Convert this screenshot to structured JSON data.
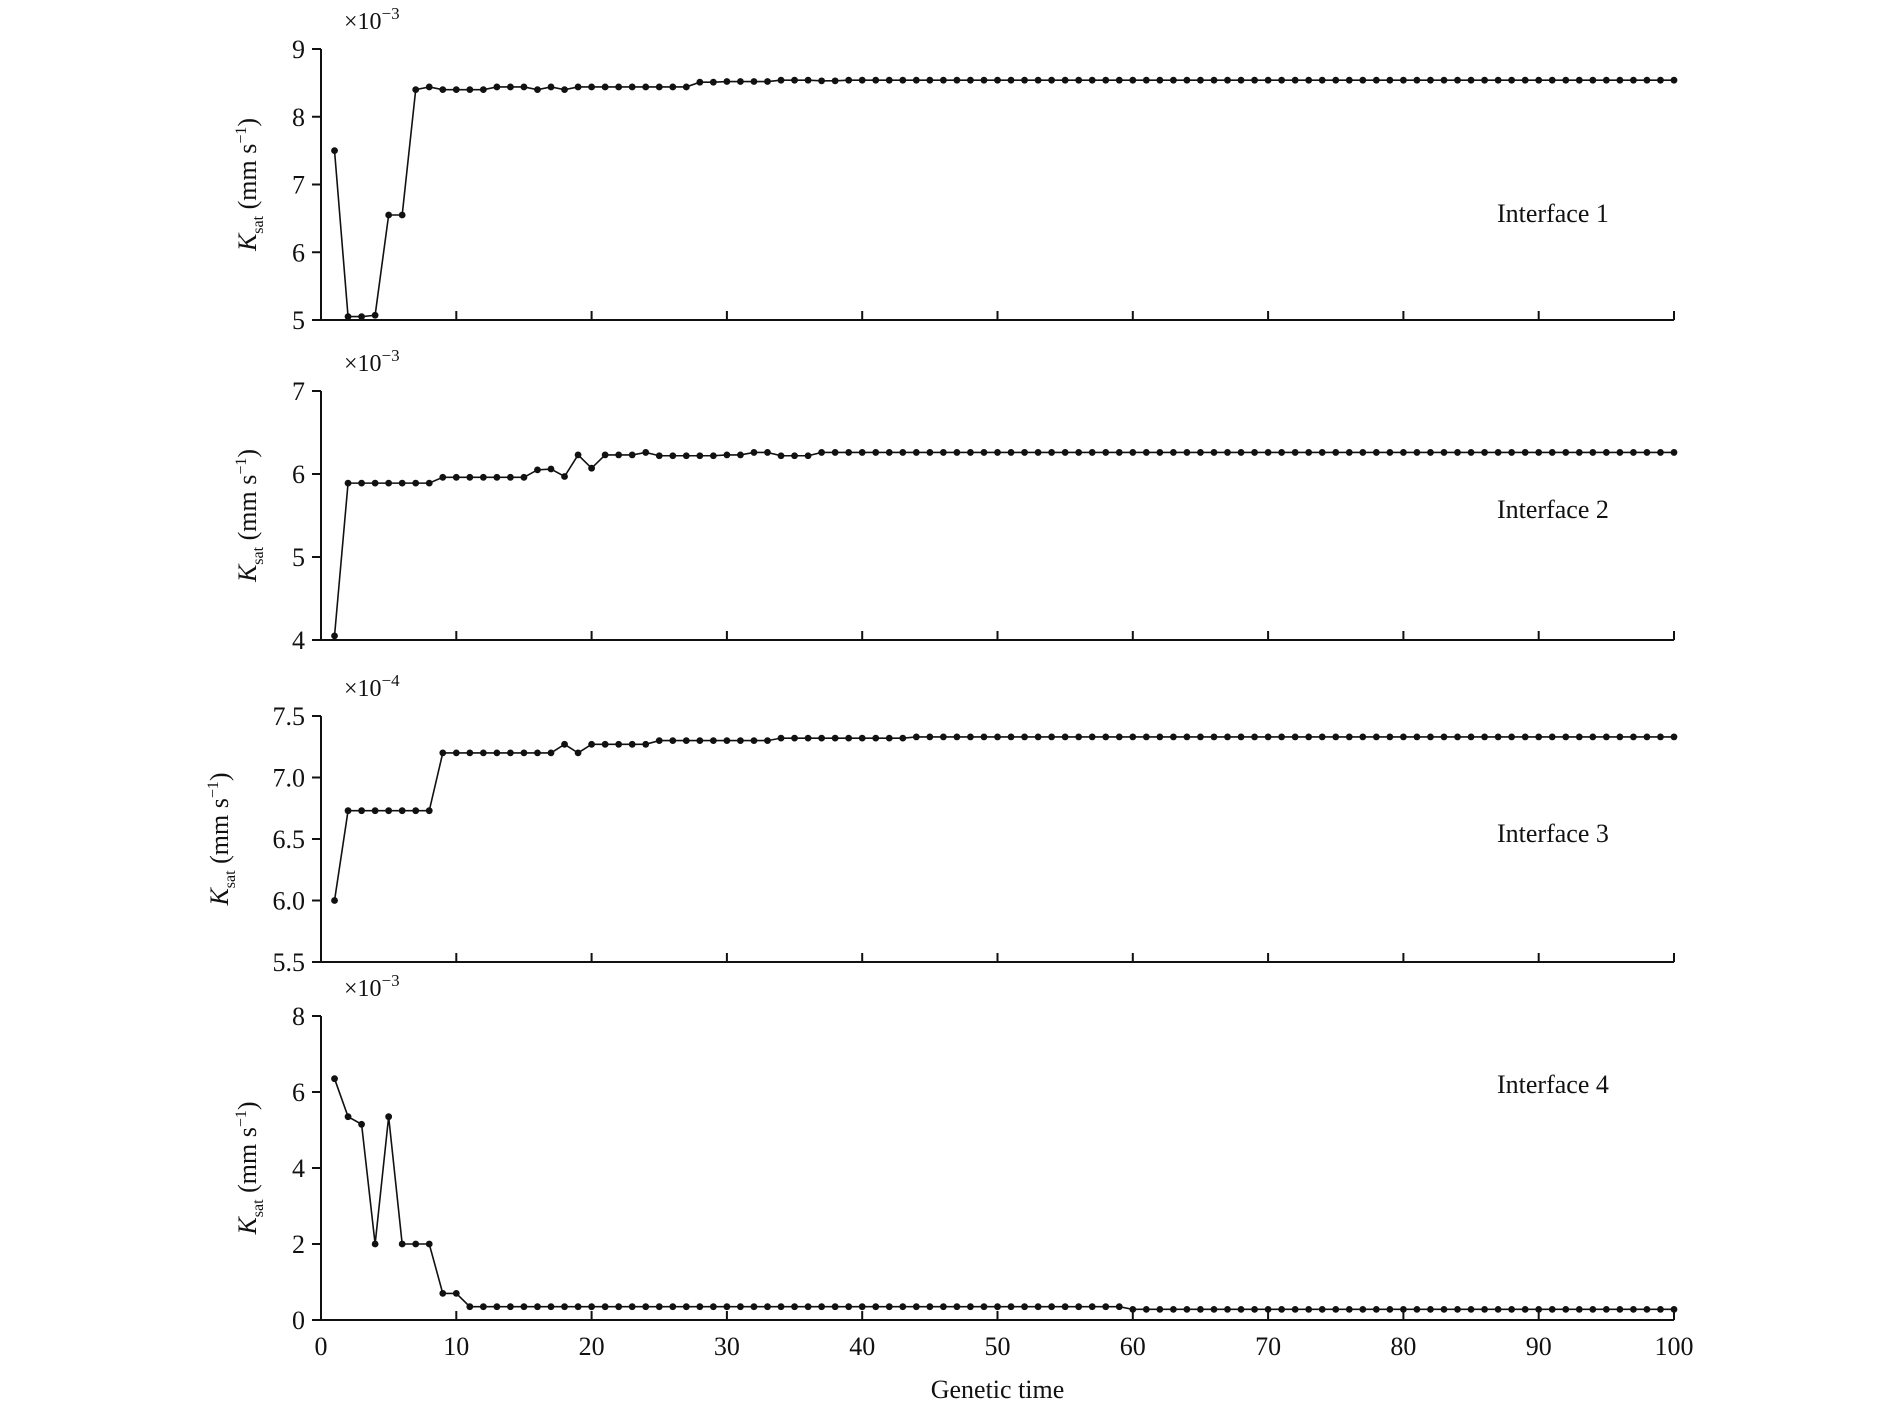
{
  "chart_data": {
    "type": "line",
    "xlabel": "Genetic time",
    "xlim": [
      0,
      100
    ],
    "x_ticks": [
      "0",
      "10",
      "20",
      "30",
      "40",
      "50",
      "60",
      "70",
      "80",
      "90",
      "100"
    ],
    "line_color": "#111111",
    "marker": "dot",
    "grid": false,
    "panels": [
      {
        "panel_label": "Interface 1",
        "ylabel_var": "K",
        "ylabel_sub": "sat",
        "ylabel_unit": " (mm s",
        "ylabel_exp": "−1",
        "ylabel_close": ")",
        "multiplier_base": "×10",
        "multiplier_exp": "−3",
        "ylim": [
          5,
          9
        ],
        "y_ticks": [
          "5",
          "6",
          "7",
          "8",
          "9"
        ],
        "x": [
          1,
          2,
          3,
          4,
          5,
          6,
          7,
          8,
          9,
          10,
          11,
          12,
          13,
          14,
          15,
          16,
          17,
          18,
          19,
          20,
          21,
          22,
          23,
          24,
          25,
          26,
          27,
          28,
          29,
          30,
          31,
          32,
          33,
          34,
          35,
          36,
          37,
          38,
          39,
          40,
          41,
          42,
          43,
          44,
          45,
          46,
          47,
          48,
          49,
          50,
          51,
          52,
          53,
          54,
          55,
          56,
          57,
          58,
          59,
          60,
          61,
          62,
          63,
          64,
          65,
          66,
          67,
          68,
          69,
          70,
          71,
          72,
          73,
          74,
          75,
          76,
          77,
          78,
          79,
          80,
          81,
          82,
          83,
          84,
          85,
          86,
          87,
          88,
          89,
          90,
          91,
          92,
          93,
          94,
          95,
          96,
          97,
          98,
          99,
          100
        ],
        "values": [
          7.5,
          5.05,
          5.05,
          5.07,
          6.55,
          6.55,
          8.4,
          8.44,
          8.4,
          8.4,
          8.4,
          8.4,
          8.44,
          8.44,
          8.44,
          8.4,
          8.44,
          8.4,
          8.44,
          8.44,
          8.44,
          8.44,
          8.44,
          8.44,
          8.44,
          8.44,
          8.44,
          8.51,
          8.51,
          8.52,
          8.52,
          8.52,
          8.52,
          8.54,
          8.54,
          8.54,
          8.53,
          8.53,
          8.54,
          8.54,
          8.54,
          8.54,
          8.54,
          8.54,
          8.54,
          8.54,
          8.54,
          8.54,
          8.54,
          8.54,
          8.54,
          8.54,
          8.54,
          8.54,
          8.54,
          8.54,
          8.54,
          8.54,
          8.54,
          8.54,
          8.54,
          8.54,
          8.54,
          8.54,
          8.54,
          8.54,
          8.54,
          8.54,
          8.54,
          8.54,
          8.54,
          8.54,
          8.54,
          8.54,
          8.54,
          8.54,
          8.54,
          8.54,
          8.54,
          8.54,
          8.54,
          8.54,
          8.54,
          8.54,
          8.54,
          8.54,
          8.54,
          8.54,
          8.54,
          8.54,
          8.54,
          8.54,
          8.54,
          8.54,
          8.54,
          8.54,
          8.54,
          8.54,
          8.54,
          8.54
        ]
      },
      {
        "panel_label": "Interface 2",
        "ylabel_var": "K",
        "ylabel_sub": "sat",
        "ylabel_unit": " (mm s",
        "ylabel_exp": "−1",
        "ylabel_close": ")",
        "multiplier_base": "×10",
        "multiplier_exp": "−3",
        "ylim": [
          4,
          7
        ],
        "y_ticks": [
          "4",
          "5",
          "6",
          "7"
        ],
        "x": [
          1,
          2,
          3,
          4,
          5,
          6,
          7,
          8,
          9,
          10,
          11,
          12,
          13,
          14,
          15,
          16,
          17,
          18,
          19,
          20,
          21,
          22,
          23,
          24,
          25,
          26,
          27,
          28,
          29,
          30,
          31,
          32,
          33,
          34,
          35,
          36,
          37,
          38,
          39,
          40,
          41,
          42,
          43,
          44,
          45,
          46,
          47,
          48,
          49,
          50,
          51,
          52,
          53,
          54,
          55,
          56,
          57,
          58,
          59,
          60,
          61,
          62,
          63,
          64,
          65,
          66,
          67,
          68,
          69,
          70,
          71,
          72,
          73,
          74,
          75,
          76,
          77,
          78,
          79,
          80,
          81,
          82,
          83,
          84,
          85,
          86,
          87,
          88,
          89,
          90,
          91,
          92,
          93,
          94,
          95,
          96,
          97,
          98,
          99,
          100
        ],
        "values": [
          4.05,
          5.89,
          5.89,
          5.89,
          5.89,
          5.89,
          5.89,
          5.89,
          5.96,
          5.96,
          5.96,
          5.96,
          5.96,
          5.96,
          5.96,
          6.05,
          6.06,
          5.97,
          6.23,
          6.07,
          6.23,
          6.23,
          6.23,
          6.26,
          6.22,
          6.22,
          6.22,
          6.22,
          6.22,
          6.23,
          6.23,
          6.26,
          6.26,
          6.22,
          6.22,
          6.22,
          6.26,
          6.26,
          6.26,
          6.26,
          6.26,
          6.26,
          6.26,
          6.26,
          6.26,
          6.26,
          6.26,
          6.26,
          6.26,
          6.26,
          6.26,
          6.26,
          6.26,
          6.26,
          6.26,
          6.26,
          6.26,
          6.26,
          6.26,
          6.26,
          6.26,
          6.26,
          6.26,
          6.26,
          6.26,
          6.26,
          6.26,
          6.26,
          6.26,
          6.26,
          6.26,
          6.26,
          6.26,
          6.26,
          6.26,
          6.26,
          6.26,
          6.26,
          6.26,
          6.26,
          6.26,
          6.26,
          6.26,
          6.26,
          6.26,
          6.26,
          6.26,
          6.26,
          6.26,
          6.26,
          6.26,
          6.26,
          6.26,
          6.26,
          6.26,
          6.26,
          6.26,
          6.26,
          6.26,
          6.26
        ]
      },
      {
        "panel_label": "Interface 3",
        "ylabel_var": "K",
        "ylabel_sub": "sat",
        "ylabel_unit": " (mm s",
        "ylabel_exp": "−1",
        "ylabel_close": ")",
        "multiplier_base": "×10",
        "multiplier_exp": "−4",
        "ylim": [
          5.5,
          7.5
        ],
        "y_ticks": [
          "5.5",
          "6.0",
          "6.5",
          "7.0",
          "7.5"
        ],
        "x": [
          1,
          2,
          3,
          4,
          5,
          6,
          7,
          8,
          9,
          10,
          11,
          12,
          13,
          14,
          15,
          16,
          17,
          18,
          19,
          20,
          21,
          22,
          23,
          24,
          25,
          26,
          27,
          28,
          29,
          30,
          31,
          32,
          33,
          34,
          35,
          36,
          37,
          38,
          39,
          40,
          41,
          42,
          43,
          44,
          45,
          46,
          47,
          48,
          49,
          50,
          51,
          52,
          53,
          54,
          55,
          56,
          57,
          58,
          59,
          60,
          61,
          62,
          63,
          64,
          65,
          66,
          67,
          68,
          69,
          70,
          71,
          72,
          73,
          74,
          75,
          76,
          77,
          78,
          79,
          80,
          81,
          82,
          83,
          84,
          85,
          86,
          87,
          88,
          89,
          90,
          91,
          92,
          93,
          94,
          95,
          96,
          97,
          98,
          99,
          100
        ],
        "values": [
          6.0,
          6.73,
          6.73,
          6.73,
          6.73,
          6.73,
          6.73,
          6.73,
          7.2,
          7.2,
          7.2,
          7.2,
          7.2,
          7.2,
          7.2,
          7.2,
          7.2,
          7.27,
          7.2,
          7.27,
          7.27,
          7.27,
          7.27,
          7.27,
          7.3,
          7.3,
          7.3,
          7.3,
          7.3,
          7.3,
          7.3,
          7.3,
          7.3,
          7.32,
          7.32,
          7.32,
          7.32,
          7.32,
          7.32,
          7.32,
          7.32,
          7.32,
          7.32,
          7.33,
          7.33,
          7.33,
          7.33,
          7.33,
          7.33,
          7.33,
          7.33,
          7.33,
          7.33,
          7.33,
          7.33,
          7.33,
          7.33,
          7.33,
          7.33,
          7.33,
          7.33,
          7.33,
          7.33,
          7.33,
          7.33,
          7.33,
          7.33,
          7.33,
          7.33,
          7.33,
          7.33,
          7.33,
          7.33,
          7.33,
          7.33,
          7.33,
          7.33,
          7.33,
          7.33,
          7.33,
          7.33,
          7.33,
          7.33,
          7.33,
          7.33,
          7.33,
          7.33,
          7.33,
          7.33,
          7.33,
          7.33,
          7.33,
          7.33,
          7.33,
          7.33,
          7.33,
          7.33,
          7.33,
          7.33,
          7.33
        ]
      },
      {
        "panel_label": "Interface 4",
        "ylabel_var": "K",
        "ylabel_sub": "sat",
        "ylabel_unit": " (mm s",
        "ylabel_exp": "−1",
        "ylabel_close": ")",
        "multiplier_base": "×10",
        "multiplier_exp": "−3",
        "ylim": [
          0,
          8
        ],
        "y_ticks": [
          "0",
          "2",
          "4",
          "6",
          "8"
        ],
        "x": [
          1,
          2,
          3,
          4,
          5,
          6,
          7,
          8,
          9,
          10,
          11,
          12,
          13,
          14,
          15,
          16,
          17,
          18,
          19,
          20,
          21,
          22,
          23,
          24,
          25,
          26,
          27,
          28,
          29,
          30,
          31,
          32,
          33,
          34,
          35,
          36,
          37,
          38,
          39,
          40,
          41,
          42,
          43,
          44,
          45,
          46,
          47,
          48,
          49,
          50,
          51,
          52,
          53,
          54,
          55,
          56,
          57,
          58,
          59,
          60,
          61,
          62,
          63,
          64,
          65,
          66,
          67,
          68,
          69,
          70,
          71,
          72,
          73,
          74,
          75,
          76,
          77,
          78,
          79,
          80,
          81,
          82,
          83,
          84,
          85,
          86,
          87,
          88,
          89,
          90,
          91,
          92,
          93,
          94,
          95,
          96,
          97,
          98,
          99,
          100
        ],
        "values": [
          6.35,
          5.35,
          5.15,
          2.0,
          5.35,
          2.0,
          2.0,
          2.0,
          0.7,
          0.7,
          0.35,
          0.35,
          0.35,
          0.35,
          0.35,
          0.35,
          0.35,
          0.35,
          0.35,
          0.35,
          0.35,
          0.35,
          0.35,
          0.35,
          0.35,
          0.35,
          0.35,
          0.35,
          0.35,
          0.35,
          0.35,
          0.35,
          0.35,
          0.35,
          0.35,
          0.35,
          0.35,
          0.35,
          0.35,
          0.35,
          0.35,
          0.35,
          0.35,
          0.35,
          0.35,
          0.35,
          0.35,
          0.35,
          0.35,
          0.35,
          0.35,
          0.35,
          0.35,
          0.35,
          0.35,
          0.35,
          0.35,
          0.35,
          0.35,
          0.28,
          0.28,
          0.28,
          0.28,
          0.28,
          0.28,
          0.28,
          0.28,
          0.28,
          0.28,
          0.28,
          0.28,
          0.28,
          0.28,
          0.28,
          0.28,
          0.28,
          0.28,
          0.28,
          0.28,
          0.28,
          0.28,
          0.28,
          0.28,
          0.28,
          0.28,
          0.28,
          0.28,
          0.28,
          0.28,
          0.28,
          0.28,
          0.28,
          0.28,
          0.28,
          0.28,
          0.28,
          0.28,
          0.28,
          0.28,
          0.28
        ]
      }
    ]
  }
}
